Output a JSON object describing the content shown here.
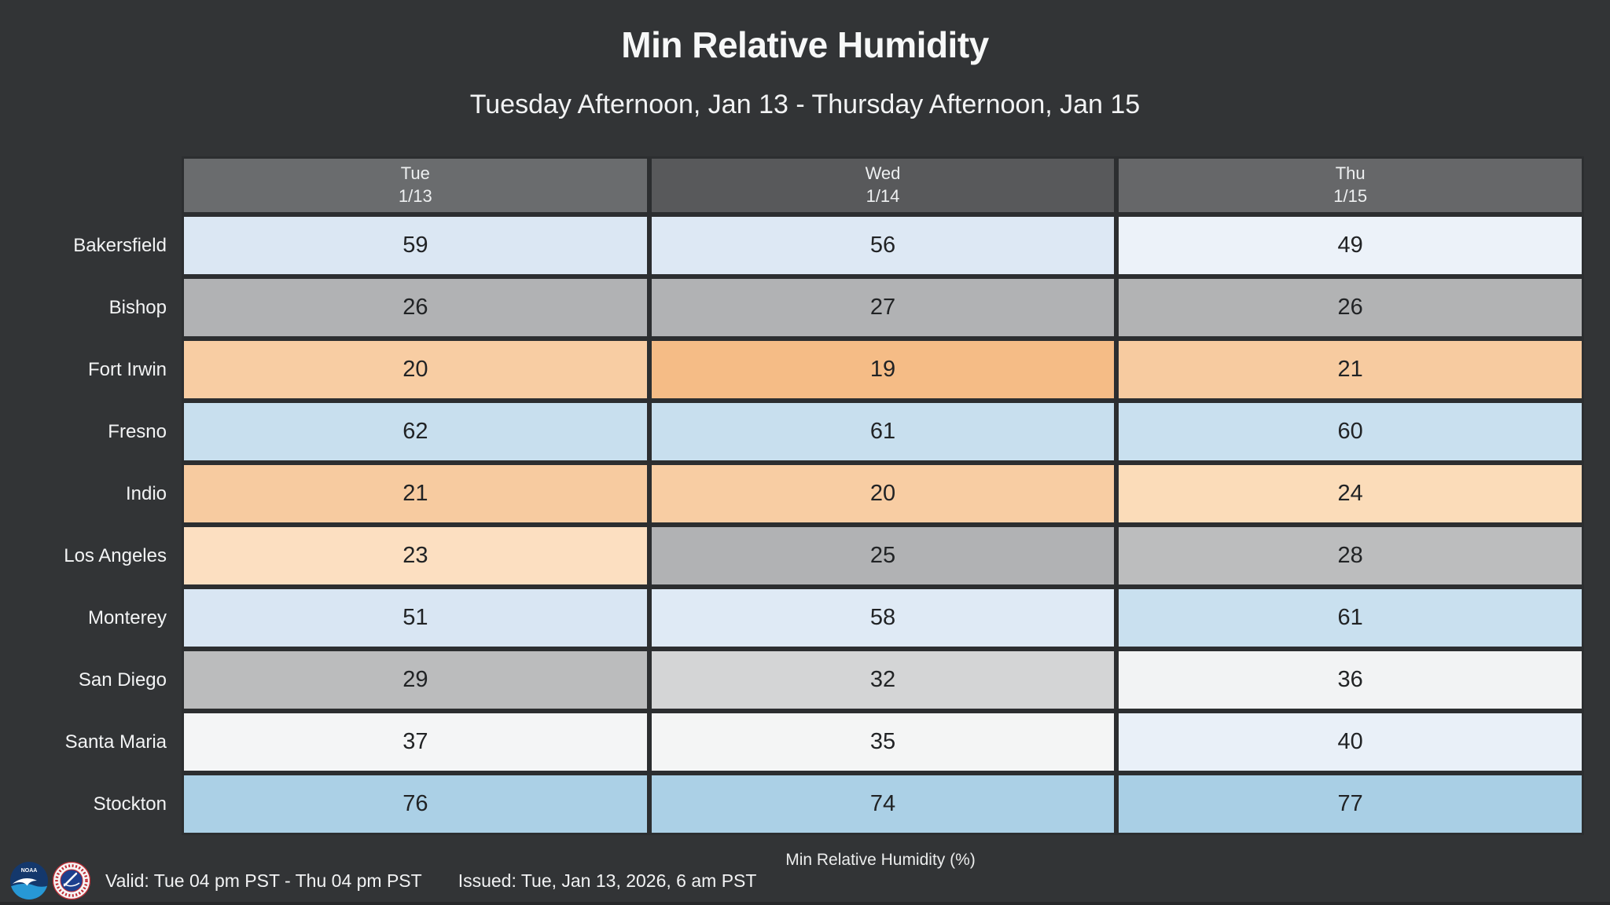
{
  "title": "Min Relative Humidity",
  "subtitle": "Tuesday Afternoon, Jan 13 - Thursday Afternoon, Jan 15",
  "caption": "Min Relative Humidity (%)",
  "footer": {
    "valid": "Valid: Tue 04 pm PST - Thu 04 pm PST",
    "issued": "Issued: Tue, Jan 13, 2026, 6 am PST"
  },
  "colors": {
    "background": "#323436",
    "grid_line": "#2c2e30",
    "cell_text": "#212325",
    "label_text": "#f3f4f5",
    "header_text": "#eef0f1"
  },
  "icons": {
    "noaa": "noaa-logo",
    "nws": "nws-logo"
  },
  "chart_data": {
    "type": "heatmap",
    "title": "Min Relative Humidity",
    "subtitle": "Tuesday Afternoon, Jan 13 - Thursday Afternoon, Jan 15",
    "unit_label": "Min Relative Humidity (%)",
    "value_range_note": "values are percent relative humidity; orange = dry (low %), gray/white = mid, blue = humid (high %)",
    "columns": [
      {
        "day": "Tue",
        "date": "1/13",
        "header_bg": "#6a6c6e"
      },
      {
        "day": "Wed",
        "date": "1/14",
        "header_bg": "#58595b"
      },
      {
        "day": "Thu",
        "date": "1/15",
        "header_bg": "#666769"
      }
    ],
    "rows": [
      {
        "city": "Bakersfield",
        "values": [
          59,
          56,
          49
        ],
        "cell_colors": [
          "#dbe7f3",
          "#dde8f4",
          "#ecf2f9"
        ]
      },
      {
        "city": "Bishop",
        "values": [
          26,
          27,
          26
        ],
        "cell_colors": [
          "#b1b2b4",
          "#b1b2b4",
          "#b2b3b4"
        ]
      },
      {
        "city": "Fort Irwin",
        "values": [
          20,
          19,
          21
        ],
        "cell_colors": [
          "#f8cda3",
          "#f5bc86",
          "#f7cba0"
        ]
      },
      {
        "city": "Fresno",
        "values": [
          62,
          61,
          60
        ],
        "cell_colors": [
          "#c8dfee",
          "#c8dfee",
          "#c9e0ef"
        ]
      },
      {
        "city": "Indio",
        "values": [
          21,
          20,
          24
        ],
        "cell_colors": [
          "#f7cba0",
          "#f8cda3",
          "#fbdcb9"
        ]
      },
      {
        "city": "Los Angeles",
        "values": [
          23,
          25,
          28
        ],
        "cell_colors": [
          "#fcdfc1",
          "#b1b2b4",
          "#bcbdbe"
        ]
      },
      {
        "city": "Monterey",
        "values": [
          51,
          58,
          61
        ],
        "cell_colors": [
          "#d9e6f3",
          "#dfeaf5",
          "#c9e0ef"
        ]
      },
      {
        "city": "San Diego",
        "values": [
          29,
          32,
          36
        ],
        "cell_colors": [
          "#bbbcbd",
          "#d4d5d6",
          "#f2f3f4"
        ]
      },
      {
        "city": "Santa Maria",
        "values": [
          37,
          35,
          40
        ],
        "cell_colors": [
          "#f4f5f6",
          "#f4f5f5",
          "#e9f0f8"
        ]
      },
      {
        "city": "Stockton",
        "values": [
          76,
          74,
          77
        ],
        "cell_colors": [
          "#abd0e6",
          "#abd0e6",
          "#a9cfe5"
        ]
      }
    ]
  }
}
